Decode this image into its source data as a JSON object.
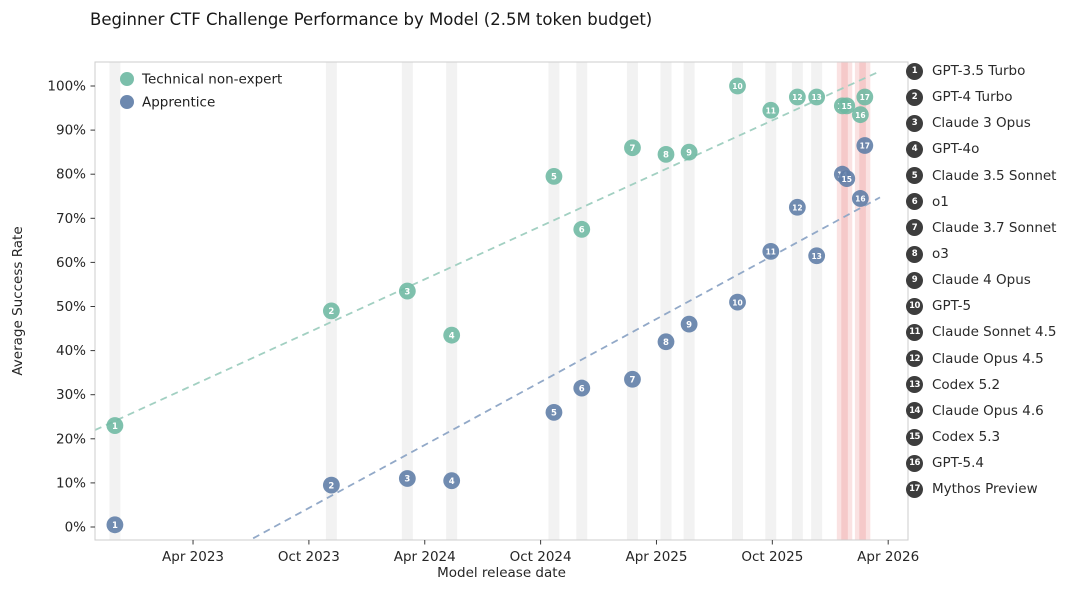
{
  "chart_data": {
    "type": "scatter",
    "title": "Beginner CTF Challenge Performance by Model (2.5M token budget)",
    "xlabel": "Model release date",
    "ylabel": "Average Success Rate",
    "x_ticks": [
      "Apr 2023",
      "Oct 2023",
      "Apr 2024",
      "Oct 2024",
      "Apr 2025",
      "Oct 2025",
      "Apr 2026"
    ],
    "y_ticks": [
      "0%",
      "10%",
      "20%",
      "30%",
      "40%",
      "50%",
      "60%",
      "70%",
      "80%",
      "90%",
      "100%"
    ],
    "ylim": [
      0,
      100
    ],
    "x_range": [
      "2022-11",
      "2026-05"
    ],
    "legend_position": "upper-left",
    "grid": false,
    "series": [
      {
        "key": "non_expert",
        "name": "Technical non-expert",
        "color": "#6db8a2",
        "trend_color": "#a2d0c2"
      },
      {
        "key": "apprentice",
        "name": "Apprentice",
        "color": "#5d7ca6",
        "trend_color": "#92a9c8"
      }
    ],
    "trend_lines": "dashed linear fit per series",
    "models": [
      {
        "id": 1,
        "name": "GPT-3.5 Turbo",
        "release": "2022-11-30",
        "non_expert": 23,
        "apprentice": 0.5,
        "recent": false
      },
      {
        "id": 2,
        "name": "GPT-4 Turbo",
        "release": "2023-11-06",
        "non_expert": 49,
        "apprentice": 9.5,
        "recent": false
      },
      {
        "id": 3,
        "name": "Claude 3 Opus",
        "release": "2024-03-04",
        "non_expert": 53.5,
        "apprentice": 11,
        "recent": false
      },
      {
        "id": 4,
        "name": "GPT-4o",
        "release": "2024-05-13",
        "non_expert": 43.5,
        "apprentice": 10.5,
        "recent": false
      },
      {
        "id": 5,
        "name": "Claude 3.5 Sonnet",
        "release": "2024-10-22",
        "non_expert": 79.5,
        "apprentice": 26,
        "recent": false
      },
      {
        "id": 6,
        "name": "o1",
        "release": "2024-12-05",
        "non_expert": 67.5,
        "apprentice": 31.5,
        "recent": false
      },
      {
        "id": 7,
        "name": "Claude 3.7 Sonnet",
        "release": "2025-02-24",
        "non_expert": 86,
        "apprentice": 33.5,
        "recent": false
      },
      {
        "id": 8,
        "name": "o3",
        "release": "2025-04-16",
        "non_expert": 84.5,
        "apprentice": 42,
        "recent": false
      },
      {
        "id": 9,
        "name": "Claude 4 Opus",
        "release": "2025-05-22",
        "non_expert": 85,
        "apprentice": 46,
        "recent": false
      },
      {
        "id": 10,
        "name": "GPT-5",
        "release": "2025-08-07",
        "non_expert": 100,
        "apprentice": 51,
        "recent": false
      },
      {
        "id": 11,
        "name": "Claude Sonnet 4.5",
        "release": "2025-09-29",
        "non_expert": 94.5,
        "apprentice": 62.5,
        "recent": false
      },
      {
        "id": 12,
        "name": "Claude Opus 4.5",
        "release": "2025-11-10",
        "non_expert": 97.5,
        "apprentice": 72.5,
        "recent": false
      },
      {
        "id": 13,
        "name": "Codex 5.2",
        "release": "2025-12-10",
        "non_expert": 97.5,
        "apprentice": 61.5,
        "recent": false
      },
      {
        "id": 14,
        "name": "Claude Opus 4.6",
        "release": "2026-01-20",
        "non_expert": 95.5,
        "apprentice": 80,
        "recent": true
      },
      {
        "id": 15,
        "name": "Codex 5.3",
        "release": "2026-01-27",
        "non_expert": 95.5,
        "apprentice": 79,
        "recent": true
      },
      {
        "id": 16,
        "name": "GPT-5.4",
        "release": "2026-02-18",
        "non_expert": 93.5,
        "apprentice": 74.5,
        "recent": true
      },
      {
        "id": 17,
        "name": "Mythos Preview",
        "release": "2026-02-25",
        "non_expert": 97.5,
        "apprentice": 86.5,
        "recent": true
      }
    ],
    "colors": {
      "band": "rgba(0,0,0,0.05)",
      "recent_band": "rgba(222,74,74,0.16)",
      "frame": "#cdcdcd",
      "tick": "#3a3a3a",
      "text": "#262626",
      "badge": "#3d3d3d"
    }
  }
}
